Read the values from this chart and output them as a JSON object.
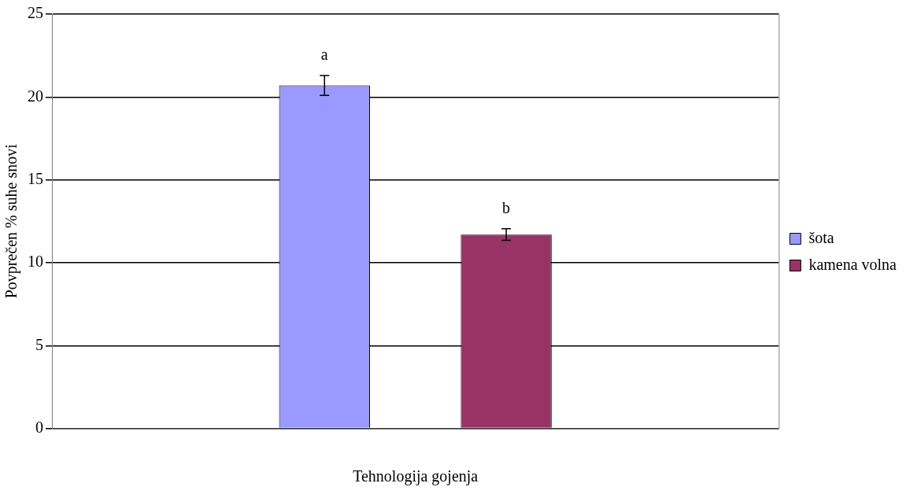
{
  "chart_data": {
    "type": "bar",
    "xlabel": "Tehnologija gojenja",
    "ylabel": "Povprečen % suhe snovi",
    "categories": [
      null
    ],
    "series": [
      {
        "name": "šota",
        "color": "#9999ff",
        "values": [
          20.7
        ],
        "errors": [
          0.6
        ]
      },
      {
        "name": "kamena volna",
        "color": "#993366",
        "values": [
          11.7
        ],
        "errors": [
          0.35
        ]
      }
    ],
    "annotations": [
      "a",
      "b"
    ],
    "ylim": [
      0,
      25
    ],
    "yticks": [
      0,
      5,
      10,
      15,
      20,
      25
    ],
    "grid": "y",
    "legend": "right"
  }
}
